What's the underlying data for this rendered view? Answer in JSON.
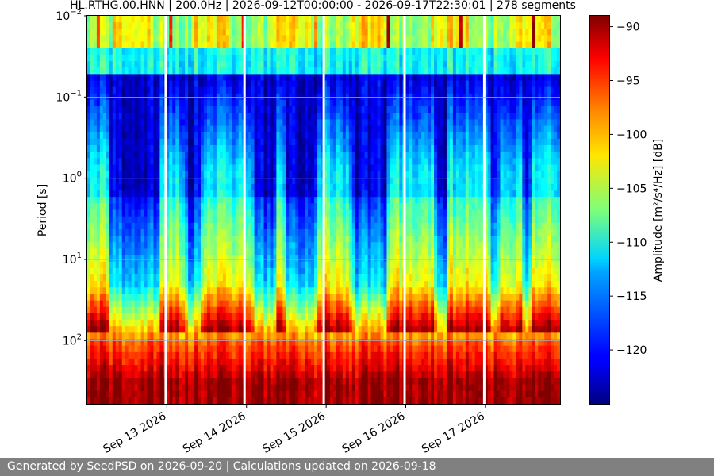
{
  "chart_data": {
    "type": "heatmap",
    "title": "HL.RTHG.00.HNN | 200.0Hz | 2026-09-12T00:00:00 - 2026-09-17T22:30:01 | 278 segments",
    "ylabel": "Period [s]",
    "colorbar_label": "Amplitude [m²/s⁴/Hz] [dB]",
    "y_scale": "log",
    "y_inverted": true,
    "ylim": [
      0.01,
      600
    ],
    "y_ticks": [
      {
        "value": 0.01,
        "base": "10",
        "exp": "−2"
      },
      {
        "value": 0.1,
        "base": "10",
        "exp": "−1"
      },
      {
        "value": 1,
        "base": "10",
        "exp": "0"
      },
      {
        "value": 10,
        "base": "10",
        "exp": "1"
      },
      {
        "value": 100,
        "base": "10",
        "exp": "2"
      }
    ],
    "x_start": "2026-09-12T00:00:00",
    "x_end": "2026-09-17T22:30:01",
    "x_ticks": [
      "Sep 13 2026",
      "Sep 14 2026",
      "Sep 15 2026",
      "Sep 16 2026",
      "Sep 17 2026"
    ],
    "x_tick_positions_days": [
      1,
      2,
      3,
      4,
      5
    ],
    "data_gaps_days": [
      0.985,
      1.975,
      2.97,
      3.985,
      4.985
    ],
    "segments": 278,
    "colormap": "jet",
    "clim_db": [
      -125,
      -89
    ],
    "colorbar_ticks": [
      -90,
      -95,
      -100,
      -105,
      -110,
      -115,
      -120
    ],
    "grid": true,
    "quiet_intervals_days": [
      [
        0.25,
        0.95
      ],
      [
        1.2,
        1.45
      ],
      [
        2.05,
        2.4
      ],
      [
        2.45,
        2.9
      ],
      [
        3.3,
        3.8
      ],
      [
        4.35,
        4.55
      ],
      [
        5.05,
        5.2
      ],
      [
        5.45,
        5.6
      ]
    ]
  },
  "footer": {
    "text": "Generated by SeedPSD on 2026-09-20 | Calculations updated on 2026-09-18"
  }
}
